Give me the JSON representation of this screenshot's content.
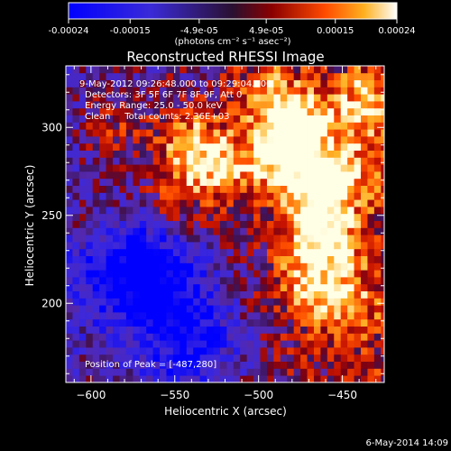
{
  "chart_data": {
    "type": "heatmap",
    "title": "Reconstructed RHESSI Image",
    "xlabel": "Heliocentric X (arcsec)",
    "ylabel": "Heliocentric Y (arcsec)",
    "xlim": [
      -615,
      -425
    ],
    "ylim": [
      155,
      335
    ],
    "x_ticks": [
      -600,
      -550,
      -500,
      -450
    ],
    "y_ticks": [
      200,
      250,
      300
    ],
    "colorbar": {
      "label": "(photons cm⁻² s⁻¹ asec⁻²)",
      "range": [
        -0.00024,
        0.00024
      ],
      "tick_labels": [
        "-0.00024",
        "-0.00015",
        "-4.9e-05",
        "4.9e-05",
        "0.00015",
        "0.00024"
      ],
      "tick_values": [
        -0.00024,
        -0.00015,
        -4.9e-05,
        4.9e-05,
        0.00015,
        0.00024
      ]
    },
    "annotations": {
      "time_range": "9-May-2012 09:26:48.000 to 09:29:04.000",
      "detectors": "Detectors: 3F 5F 6F 7F 8F 9F, Att 0",
      "energy": "Energy Range: 25.0 - 50.0 keV",
      "clean": "Clean     Total counts: 2.36E+03",
      "peak": "Position of Peak = [-487,280]"
    },
    "hotspots": [
      {
        "x": -480,
        "y": 300,
        "v": 0.00024
      },
      {
        "x": -487,
        "y": 280,
        "v": 0.00024
      },
      {
        "x": -525,
        "y": 275,
        "v": 0.00021
      },
      {
        "x": -545,
        "y": 290,
        "v": 0.00017
      },
      {
        "x": -455,
        "y": 270,
        "v": 0.0002
      },
      {
        "x": -470,
        "y": 250,
        "v": 0.00019
      },
      {
        "x": -460,
        "y": 230,
        "v": 0.00017
      },
      {
        "x": -475,
        "y": 210,
        "v": 0.00014
      },
      {
        "x": -450,
        "y": 195,
        "v": 0.00013
      },
      {
        "x": -500,
        "y": 318,
        "v": 0.00014
      },
      {
        "x": -440,
        "y": 310,
        "v": 0.00016
      },
      {
        "x": -590,
        "y": 300,
        "v": 0.00011
      },
      {
        "x": -600,
        "y": 245,
        "v": 9e-05
      },
      {
        "x": -555,
        "y": 255,
        "v": 0.0001
      }
    ],
    "coldspots": [
      {
        "x": -565,
        "y": 210,
        "v": -0.00022
      },
      {
        "x": -540,
        "y": 175,
        "v": -0.00018
      },
      {
        "x": -590,
        "y": 225,
        "v": -0.00012
      }
    ]
  },
  "footer": {
    "date": "6-May-2014 14:09"
  }
}
